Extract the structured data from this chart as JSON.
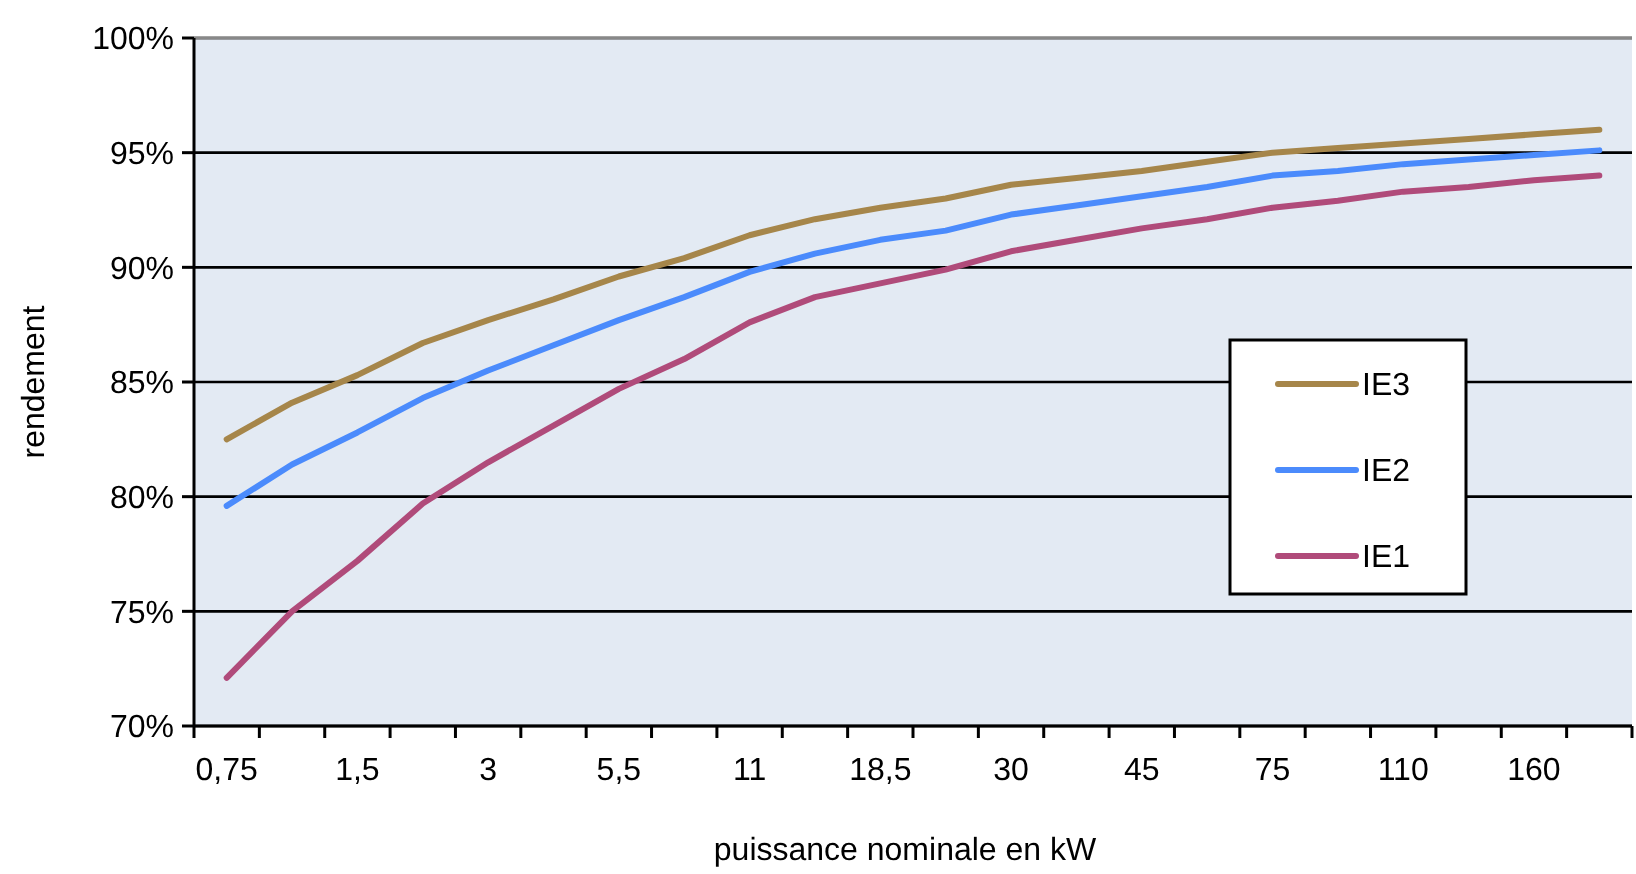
{
  "chart_data": {
    "type": "line",
    "xlabel": "puissance nominale en kW",
    "ylabel": "rendement",
    "categories": [
      "0,75",
      null,
      "1,5",
      null,
      "3",
      null,
      "5,5",
      null,
      "11",
      null,
      "18,5",
      null,
      "30",
      null,
      "45",
      null,
      "75",
      null,
      "110",
      null,
      "160",
      null
    ],
    "series": [
      {
        "name": "IE3",
        "color": "#a6864a",
        "values": [
          82.5,
          84.1,
          85.3,
          86.7,
          87.7,
          88.6,
          89.6,
          90.4,
          91.4,
          92.1,
          92.6,
          93.0,
          93.6,
          93.9,
          94.2,
          94.6,
          95.0,
          95.2,
          95.4,
          95.6,
          95.8,
          96.0
        ]
      },
      {
        "name": "IE2",
        "color": "#4b8bfc",
        "values": [
          79.6,
          81.4,
          82.8,
          84.3,
          85.5,
          86.6,
          87.7,
          88.7,
          89.8,
          90.6,
          91.2,
          91.6,
          92.3,
          92.7,
          93.1,
          93.5,
          94.0,
          94.2,
          94.5,
          94.7,
          94.9,
          95.1
        ]
      },
      {
        "name": "IE1",
        "color": "#b04b7a",
        "values": [
          72.1,
          75.0,
          77.2,
          79.7,
          81.5,
          83.1,
          84.7,
          86.0,
          87.6,
          88.7,
          89.3,
          89.9,
          90.7,
          91.2,
          91.7,
          92.1,
          92.6,
          92.9,
          93.3,
          93.5,
          93.8,
          94.0
        ]
      }
    ],
    "ylim": [
      70,
      100
    ],
    "yticks": [
      {
        "value": 70,
        "label": "70%"
      },
      {
        "value": 75,
        "label": "75%"
      },
      {
        "value": 80,
        "label": "80%"
      },
      {
        "value": 85,
        "label": "85%"
      },
      {
        "value": 90,
        "label": "90%"
      },
      {
        "value": 95,
        "label": "95%"
      },
      {
        "value": 100,
        "label": "100%"
      }
    ],
    "grid": "y",
    "legend": "right",
    "marker": "none",
    "line_style": "solid"
  }
}
